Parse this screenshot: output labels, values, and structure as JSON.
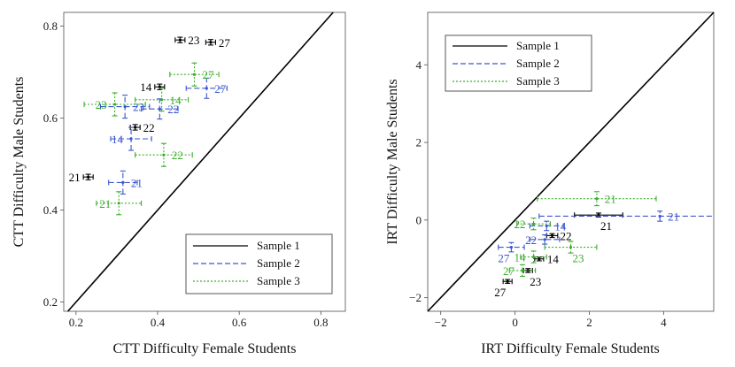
{
  "chart_data": [
    {
      "type": "scatter",
      "title": "",
      "xlabel": "CTT Difficulty Female Students",
      "ylabel": "CTT Difficulty Male Students",
      "xlim": [
        0.17,
        0.86
      ],
      "ylim": [
        0.18,
        0.83
      ],
      "xticks": [
        0.2,
        0.4,
        0.6,
        0.8
      ],
      "yticks": [
        0.2,
        0.4,
        0.6,
        0.8
      ],
      "xtick_labels": [
        "0.2",
        "0.4",
        "0.6",
        "0.8"
      ],
      "ytick_labels": [
        "0.2",
        "0.4",
        "0.6",
        "0.8"
      ],
      "reference_line": "y = x",
      "legend_position": "bottom-right",
      "legend": [
        {
          "name": "Sample 1",
          "style": "solid",
          "color": "#000000"
        },
        {
          "name": "Sample 2",
          "style": "dashed",
          "color": "#3a56d0"
        },
        {
          "name": "Sample 3",
          "style": "dotted",
          "color": "#3aad2a"
        }
      ],
      "series": [
        {
          "name": "Sample 1",
          "color": "#000000",
          "dash": "",
          "points": [
            {
              "label": "21",
              "x": 0.23,
              "y": 0.472,
              "xerr": 0.012,
              "yerr": 0.006,
              "pos": "left"
            },
            {
              "label": "22",
              "x": 0.345,
              "y": 0.58,
              "xerr": 0.012,
              "yerr": 0.006,
              "pos": "right"
            },
            {
              "label": "14",
              "x": 0.405,
              "y": 0.668,
              "xerr": 0.012,
              "yerr": 0.006,
              "pos": "left"
            },
            {
              "label": "23",
              "x": 0.455,
              "y": 0.77,
              "xerr": 0.012,
              "yerr": 0.006,
              "pos": "right"
            },
            {
              "label": "27",
              "x": 0.53,
              "y": 0.765,
              "xerr": 0.012,
              "yerr": 0.006,
              "pos": "right"
            }
          ]
        },
        {
          "name": "Sample 2",
          "color": "#3a56d0",
          "dash": "6,3",
          "points": [
            {
              "label": "21",
              "x": 0.315,
              "y": 0.46,
              "xerr": 0.035,
              "yerr": 0.025,
              "pos": "right"
            },
            {
              "label": "14",
              "x": 0.335,
              "y": 0.555,
              "xerr": 0.05,
              "yerr": 0.025,
              "pos": "left"
            },
            {
              "label": "23",
              "x": 0.32,
              "y": 0.625,
              "xerr": 0.06,
              "yerr": 0.025,
              "pos": "right"
            },
            {
              "label": "22",
              "x": 0.405,
              "y": 0.62,
              "xerr": 0.045,
              "yerr": 0.022,
              "pos": "right"
            },
            {
              "label": "27",
              "x": 0.52,
              "y": 0.665,
              "xerr": 0.05,
              "yerr": 0.022,
              "pos": "right"
            }
          ]
        },
        {
          "name": "Sample 3",
          "color": "#3aad2a",
          "dash": "2,2",
          "points": [
            {
              "label": "21",
              "x": 0.305,
              "y": 0.415,
              "xerr": 0.055,
              "yerr": 0.025,
              "pos": "left"
            },
            {
              "label": "22",
              "x": 0.415,
              "y": 0.52,
              "xerr": 0.07,
              "yerr": 0.025,
              "pos": "right"
            },
            {
              "label": "23",
              "x": 0.295,
              "y": 0.63,
              "xerr": 0.075,
              "yerr": 0.025,
              "pos": "left"
            },
            {
              "label": "14",
              "x": 0.41,
              "y": 0.64,
              "xerr": 0.065,
              "yerr": 0.025,
              "pos": "right"
            },
            {
              "label": "27",
              "x": 0.49,
              "y": 0.695,
              "xerr": 0.06,
              "yerr": 0.025,
              "pos": "right"
            }
          ]
        }
      ]
    },
    {
      "type": "scatter",
      "title": "",
      "xlabel": "IRT Difficulty Female Students",
      "ylabel": "IRT Difficulty Male Students",
      "xlim": [
        -2.35,
        5.35
      ],
      "ylim": [
        -2.35,
        5.35
      ],
      "xticks": [
        -2,
        0,
        2,
        4
      ],
      "yticks": [
        -2,
        0,
        2,
        4
      ],
      "xtick_labels": [
        "−2",
        "0",
        "2",
        "4"
      ],
      "ytick_labels": [
        "−2",
        "0",
        "2",
        "4"
      ],
      "reference_line": "y = x",
      "legend_position": "top-left",
      "legend": [
        {
          "name": "Sample 1",
          "style": "solid",
          "color": "#000000"
        },
        {
          "name": "Sample 2",
          "style": "dashed",
          "color": "#3a56d0"
        },
        {
          "name": "Sample 3",
          "style": "dotted",
          "color": "#3aad2a"
        }
      ],
      "series": [
        {
          "name": "Sample 1",
          "color": "#000000",
          "dash": "",
          "points": [
            {
              "label": "21",
              "x": 2.25,
              "y": 0.13,
              "xerr": 0.65,
              "yerr": 0.05,
              "pos": "below-right"
            },
            {
              "label": "22",
              "x": 1.0,
              "y": -0.4,
              "xerr": 0.15,
              "yerr": 0.05,
              "pos": "right"
            },
            {
              "label": "14",
              "x": 0.65,
              "y": -1.0,
              "xerr": 0.12,
              "yerr": 0.05,
              "pos": "right"
            },
            {
              "label": "23",
              "x": 0.35,
              "y": -1.3,
              "xerr": 0.12,
              "yerr": 0.05,
              "pos": "below-right"
            },
            {
              "label": "27",
              "x": -0.2,
              "y": -1.58,
              "xerr": 0.12,
              "yerr": 0.05,
              "pos": "below-left"
            }
          ]
        },
        {
          "name": "Sample 2",
          "color": "#3a56d0",
          "dash": "6,3",
          "points": [
            {
              "label": "21",
              "x": 3.9,
              "y": 0.1,
              "xerr": 3.25,
              "yerr": 0.13,
              "pos": "right"
            },
            {
              "label": "22",
              "x": 0.8,
              "y": -0.5,
              "xerr": 0.4,
              "yerr": 0.12,
              "pos": "left"
            },
            {
              "label": "14",
              "x": 0.85,
              "y": -0.15,
              "xerr": 0.45,
              "yerr": 0.12,
              "pos": "right"
            },
            {
              "label": "27",
              "x": -0.1,
              "y": -0.7,
              "xerr": 0.35,
              "yerr": 0.12,
              "pos": "below-left"
            }
          ]
        },
        {
          "name": "Sample 3",
          "color": "#3aad2a",
          "dash": "2,2",
          "points": [
            {
              "label": "21",
              "x": 2.2,
              "y": 0.55,
              "xerr": 1.6,
              "yerr": 0.18,
              "pos": "right"
            },
            {
              "label": "22",
              "x": 0.5,
              "y": -0.1,
              "xerr": 0.45,
              "yerr": 0.15,
              "pos": "left"
            },
            {
              "label": "23",
              "x": 1.5,
              "y": -0.7,
              "xerr": 0.7,
              "yerr": 0.15,
              "pos": "below-right"
            },
            {
              "label": "14",
              "x": 0.5,
              "y": -0.95,
              "xerr": 0.35,
              "yerr": 0.15,
              "pos": "left"
            },
            {
              "label": "27",
              "x": 0.2,
              "y": -1.3,
              "xerr": 0.35,
              "yerr": 0.15,
              "pos": "left"
            }
          ]
        }
      ]
    }
  ]
}
